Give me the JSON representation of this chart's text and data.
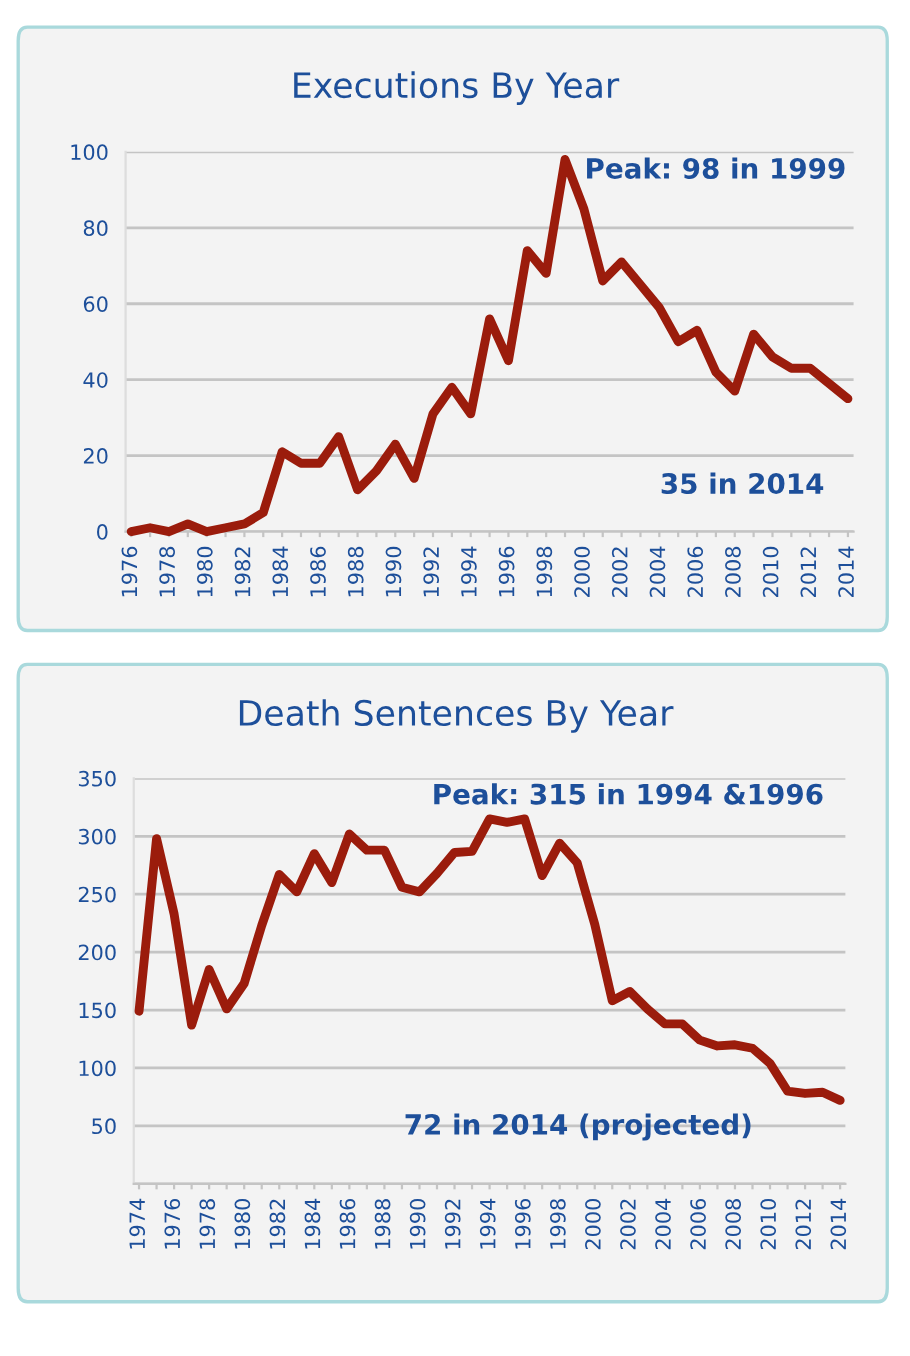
{
  "chart_data": [
    {
      "type": "line",
      "title": "Executions By Year",
      "categories": [
        "1976",
        null,
        "1978",
        null,
        "1980",
        null,
        "1982",
        null,
        "1984",
        null,
        "1986",
        null,
        "1988",
        null,
        "1990",
        null,
        "1992",
        null,
        "1994",
        null,
        "1996",
        null,
        "1998",
        null,
        "2000",
        null,
        "2002",
        null,
        "2004",
        null,
        "2006",
        null,
        "2008",
        null,
        "2010",
        null,
        "2012",
        null,
        "2014"
      ],
      "series": [
        {
          "color": "#9b1c0c",
          "values": [
            0,
            1,
            0,
            2,
            0,
            1,
            2,
            5,
            21,
            18,
            18,
            25,
            11,
            16,
            23,
            14,
            31,
            38,
            31,
            56,
            45,
            74,
            68,
            98,
            85,
            66,
            71,
            65,
            59,
            50,
            53,
            42,
            37,
            52,
            46,
            43,
            43,
            39,
            35
          ]
        }
      ],
      "ylim": [
        0,
        100
      ],
      "yticks": [
        0,
        20,
        40,
        60,
        80,
        100
      ],
      "grid": "y",
      "marker": "none",
      "line_style": "solid",
      "annotations": [
        "Peak: 98 in 1999",
        "35 in 2014"
      ]
    },
    {
      "type": "line",
      "title": "Death Sentences By Year",
      "categories": [
        "1974",
        null,
        "1976",
        null,
        "1978",
        null,
        "1980",
        null,
        "1982",
        null,
        "1984",
        null,
        "1986",
        null,
        "1988",
        null,
        "1990",
        null,
        "1992",
        null,
        "1994",
        null,
        "1996",
        null,
        "1998",
        null,
        "2000",
        null,
        "2002",
        null,
        "2004",
        null,
        "2006",
        null,
        "2008",
        null,
        "2010",
        null,
        "2012",
        null,
        "2014"
      ],
      "series": [
        {
          "color": "#9b1c0c",
          "values": [
            149,
            298,
            233,
            137,
            185,
            151,
            173,
            223,
            267,
            252,
            285,
            260,
            302,
            288,
            288,
            256,
            252,
            268,
            286,
            287,
            315,
            312,
            315,
            266,
            294,
            277,
            224,
            158,
            166,
            151,
            138,
            138,
            124,
            119,
            120,
            117,
            104,
            80,
            78,
            79,
            72
          ]
        }
      ],
      "ylim": [
        0,
        350
      ],
      "yticks": [
        {
          "value": 0,
          "label": null
        },
        50,
        100,
        150,
        200,
        250,
        300,
        350
      ],
      "grid": "y",
      "marker": "none",
      "line_style": "solid",
      "annotations": [
        "Peak: 315 in 1994 &1996",
        "72 in 2014 (projected)"
      ]
    }
  ]
}
